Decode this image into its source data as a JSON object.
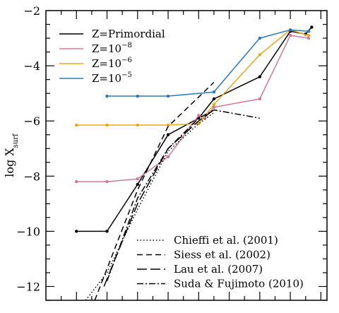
{
  "chart_data": {
    "type": "line",
    "title": "",
    "xlabel": "",
    "ylabel": "log X",
    "ylabel_sub": "surf",
    "ylim": [
      -12.5,
      -2
    ],
    "y_ticks": [
      -12,
      -10,
      -8,
      -6,
      -4,
      -2
    ],
    "y_tick_labels": [
      "−12",
      "−10",
      "−8",
      "−6",
      "−4",
      "−2"
    ],
    "grid": false,
    "legend_top": {
      "placement": "top-left",
      "entries": [
        {
          "series": 0,
          "base": "Z=Primordial",
          "exp": ""
        },
        {
          "series": 1,
          "base": "Z=10",
          "exp": "−8"
        },
        {
          "series": 2,
          "base": "Z=10",
          "exp": "−6"
        },
        {
          "series": 3,
          "base": "Z=10",
          "exp": "−5"
        }
      ]
    },
    "legend_bottom": {
      "placement": "bottom-right",
      "entries": [
        {
          "series": 4,
          "label": "Chieffi et al. (2001)"
        },
        {
          "series": 5,
          "label": "Siess et al. (2002)"
        },
        {
          "series": 6,
          "label": "Lau et al. (2007)"
        },
        {
          "series": 7,
          "label": "Suda & Fujimoto (2010)"
        }
      ]
    },
    "series": [
      {
        "name": "Z=Primordial",
        "color": "#000000",
        "dash": "",
        "markers": true,
        "points": [
          [
            0.5,
            -10.0
          ],
          [
            1.0,
            -10.0
          ],
          [
            1.5,
            -8.3
          ],
          [
            2.0,
            -6.5
          ],
          [
            2.5,
            -5.9
          ],
          [
            2.75,
            -5.2
          ],
          [
            3.5,
            -4.4
          ],
          [
            4.0,
            -2.75
          ],
          [
            4.25,
            -2.85
          ],
          [
            4.35,
            -2.6
          ]
        ]
      },
      {
        "name": "Z=10−8",
        "color": "#d0789a",
        "dash": "",
        "markers": true,
        "points": [
          [
            0.5,
            -8.2
          ],
          [
            1.0,
            -8.2
          ],
          [
            1.5,
            -8.1
          ],
          [
            2.0,
            -7.3
          ],
          [
            2.5,
            -5.8
          ],
          [
            2.6,
            -5.9
          ],
          [
            2.75,
            -5.5
          ],
          [
            3.5,
            -5.2
          ],
          [
            4.0,
            -2.9
          ],
          [
            4.3,
            -3.0
          ]
        ]
      },
      {
        "name": "Z=10−6",
        "color": "#e8a818",
        "dash": "",
        "markers": true,
        "points": [
          [
            0.5,
            -6.15
          ],
          [
            1.0,
            -6.15
          ],
          [
            1.5,
            -6.15
          ],
          [
            2.0,
            -6.15
          ],
          [
            2.5,
            -6.1
          ],
          [
            2.75,
            -5.4
          ],
          [
            3.5,
            -3.6
          ],
          [
            4.0,
            -2.7
          ],
          [
            4.3,
            -2.9
          ]
        ]
      },
      {
        "name": "Z=10−5",
        "color": "#2878b8",
        "dash": "",
        "markers": true,
        "points": [
          [
            1.0,
            -5.1
          ],
          [
            1.5,
            -5.1
          ],
          [
            2.0,
            -5.1
          ],
          [
            2.75,
            -4.95
          ],
          [
            3.5,
            -3.0
          ],
          [
            4.0,
            -2.7
          ],
          [
            4.3,
            -2.75
          ]
        ]
      },
      {
        "name": "Chieffi et al. (2001)",
        "color": "#000000",
        "dash": "1.5 3",
        "markers": false,
        "points": [
          [
            0.65,
            -12.5
          ],
          [
            1.0,
            -11.5
          ],
          [
            1.5,
            -9.2
          ],
          [
            2.0,
            -7.1
          ],
          [
            2.5,
            -6.1
          ],
          [
            2.75,
            -5.7
          ]
        ]
      },
      {
        "name": "Siess et al. (2002)",
        "color": "#000000",
        "dash": "8 5",
        "markers": false,
        "points": [
          [
            0.8,
            -12.5
          ],
          [
            1.5,
            -8.5
          ],
          [
            2.0,
            -6.2
          ],
          [
            2.75,
            -4.6
          ]
        ]
      },
      {
        "name": "Lau et al. (2007)",
        "color": "#000000",
        "dash": "14 5",
        "markers": false,
        "points": [
          [
            0.95,
            -12.0
          ],
          [
            1.5,
            -9.0
          ],
          [
            2.0,
            -7.0
          ],
          [
            2.5,
            -6.0
          ],
          [
            2.75,
            -5.6
          ]
        ]
      },
      {
        "name": "Suda & Fujimoto (2010)",
        "color": "#000000",
        "dash": "9 3 2 3",
        "markers": false,
        "points": [
          [
            1.0,
            -11.8
          ],
          [
            1.5,
            -8.8
          ],
          [
            2.0,
            -7.0
          ],
          [
            2.5,
            -5.9
          ],
          [
            2.75,
            -5.6
          ],
          [
            3.5,
            -5.9
          ]
        ]
      }
    ]
  }
}
